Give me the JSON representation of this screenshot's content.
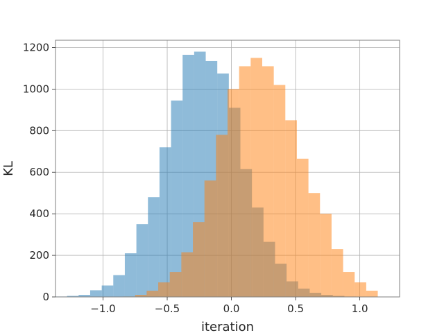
{
  "chart_data": {
    "type": "bar",
    "title": "",
    "xlabel": "iteration",
    "ylabel": "KL",
    "xlim": [
      -1.37,
      1.31
    ],
    "ylim": [
      0,
      1235
    ],
    "grid": true,
    "legend": "none",
    "x_ticks": [
      -1.0,
      -0.5,
      0.0,
      0.5,
      1.0
    ],
    "x_tick_labels": [
      "−1.0",
      "−0.5",
      "0.0",
      "0.5",
      "1.0"
    ],
    "y_ticks": [
      0,
      200,
      400,
      600,
      800,
      1000,
      1200
    ],
    "y_tick_labels": [
      "0",
      "200",
      "400",
      "600",
      "800",
      "1000",
      "1200"
    ],
    "series": [
      {
        "name": "",
        "color": "#1f77b4",
        "alpha": 0.5,
        "bin_edges": [
          -1.37,
          -1.28,
          -1.19,
          -1.1,
          -1.01,
          -0.92,
          -0.83,
          -0.74,
          -0.65,
          -0.56,
          -0.47,
          -0.38,
          -0.29,
          -0.2,
          -0.11,
          -0.02,
          0.07,
          0.16,
          0.25,
          0.34,
          0.43,
          0.52,
          0.61,
          0.7,
          0.79,
          0.88,
          0.97
        ],
        "values": [
          2,
          5,
          10,
          32,
          55,
          105,
          210,
          350,
          480,
          720,
          945,
          1165,
          1180,
          1135,
          1075,
          910,
          615,
          430,
          265,
          160,
          75,
          40,
          20,
          10,
          5,
          2
        ]
      },
      {
        "name": "",
        "color": "#ff7f0e",
        "alpha": 0.5,
        "bin_edges": [
          -0.84,
          -0.75,
          -0.66,
          -0.57,
          -0.48,
          -0.39,
          -0.3,
          -0.21,
          -0.12,
          -0.03,
          0.06,
          0.15,
          0.24,
          0.33,
          0.42,
          0.51,
          0.6,
          0.69,
          0.78,
          0.87,
          0.96,
          1.05,
          1.14
        ],
        "values": [
          2,
          10,
          30,
          70,
          120,
          215,
          360,
          560,
          780,
          1000,
          1110,
          1150,
          1110,
          1020,
          850,
          665,
          500,
          400,
          230,
          120,
          70,
          30
        ]
      }
    ]
  }
}
